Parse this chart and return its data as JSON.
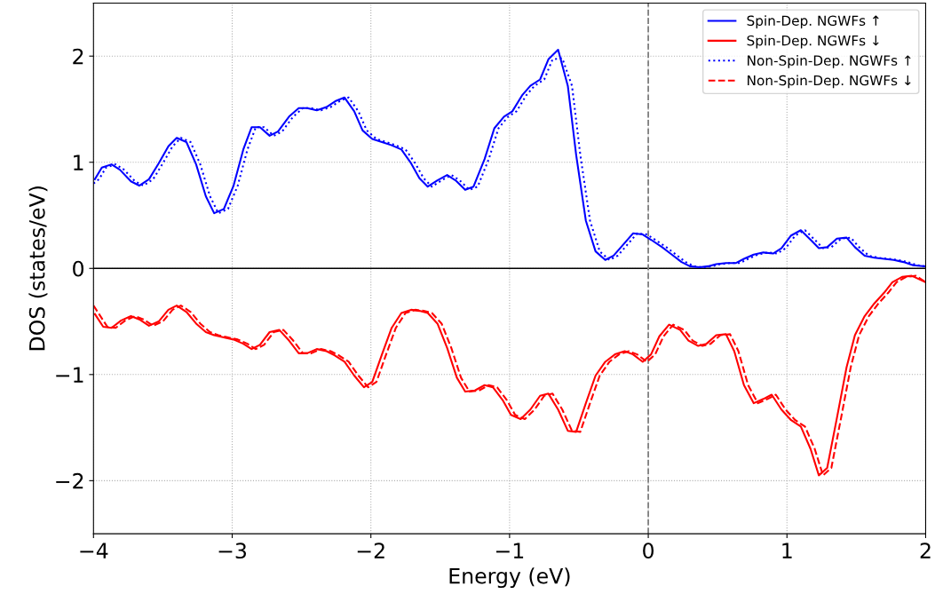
{
  "chart_data": {
    "type": "line",
    "xlabel": "Energy (eV)",
    "ylabel": "DOS (states/eV)",
    "xlim": [
      -4,
      2
    ],
    "xticks": [
      {
        "value": -4,
        "label": "−4"
      },
      {
        "value": -3,
        "label": "−3"
      },
      {
        "value": -2,
        "label": "−2"
      },
      {
        "value": -1,
        "label": "−1"
      },
      0,
      1,
      2
    ],
    "ylim": [
      -2.5,
      2.5
    ],
    "yticks": [
      {
        "value": -2,
        "label": "−2"
      },
      {
        "value": -1,
        "label": "−1"
      },
      0,
      1,
      2
    ],
    "grid": true,
    "legend": "top right",
    "ref_lines": [
      {
        "axis": "y",
        "value": 0,
        "color": "#000000",
        "line_style": "solid"
      },
      {
        "axis": "x",
        "value": 0,
        "color": "#808080",
        "line_style": "dashed"
      }
    ],
    "series": [
      {
        "name": "Spin-Dep. NGWFs ↑",
        "color": "#0000ff",
        "line_style": "solid",
        "x": [
          -3.99,
          -3.94,
          -3.87,
          -3.81,
          -3.73,
          -3.67,
          -3.6,
          -3.53,
          -3.46,
          -3.4,
          -3.33,
          -3.26,
          -3.19,
          -3.13,
          -3.06,
          -2.99,
          -2.92,
          -2.86,
          -2.8,
          -2.73,
          -2.67,
          -2.59,
          -2.52,
          -2.46,
          -2.39,
          -2.32,
          -2.25,
          -2.19,
          -2.12,
          -2.06,
          -1.99,
          -1.92,
          -1.85,
          -1.78,
          -1.71,
          -1.65,
          -1.59,
          -1.52,
          -1.45,
          -1.39,
          -1.32,
          -1.26,
          -1.18,
          -1.11,
          -1.04,
          -0.98,
          -0.91,
          -0.85,
          -0.78,
          -0.72,
          -0.65,
          -0.58,
          -0.52,
          -0.45,
          -0.38,
          -0.31,
          -0.25,
          -0.17,
          -0.11,
          -0.04,
          0.02,
          0.1,
          0.17,
          0.24,
          0.3,
          0.37,
          0.43,
          0.49,
          0.56,
          0.63,
          0.69,
          0.76,
          0.83,
          0.9,
          0.96,
          1.03,
          1.1,
          1.17,
          1.23,
          1.29,
          1.36,
          1.43,
          1.49,
          1.56,
          1.63,
          1.7,
          1.77,
          1.84,
          1.91,
          1.99
        ],
        "values": [
          0.84,
          0.95,
          0.98,
          0.93,
          0.82,
          0.78,
          0.84,
          0.99,
          1.15,
          1.23,
          1.19,
          0.98,
          0.68,
          0.52,
          0.56,
          0.78,
          1.12,
          1.33,
          1.33,
          1.25,
          1.29,
          1.43,
          1.51,
          1.51,
          1.49,
          1.52,
          1.58,
          1.61,
          1.48,
          1.3,
          1.22,
          1.19,
          1.16,
          1.12,
          0.99,
          0.85,
          0.77,
          0.83,
          0.88,
          0.83,
          0.74,
          0.77,
          1.03,
          1.32,
          1.43,
          1.48,
          1.63,
          1.72,
          1.78,
          1.97,
          2.06,
          1.72,
          1.07,
          0.45,
          0.16,
          0.08,
          0.12,
          0.24,
          0.33,
          0.32,
          0.27,
          0.2,
          0.13,
          0.06,
          0.02,
          0.01,
          0.02,
          0.04,
          0.05,
          0.05,
          0.09,
          0.13,
          0.15,
          0.14,
          0.19,
          0.31,
          0.36,
          0.27,
          0.19,
          0.2,
          0.28,
          0.29,
          0.2,
          0.12,
          0.1,
          0.09,
          0.08,
          0.06,
          0.03,
          0.02
        ]
      },
      {
        "name": "Spin-Dep. NGWFs ↓",
        "color": "#ff0000",
        "line_style": "solid",
        "x": [
          -3.99,
          -3.93,
          -3.87,
          -3.8,
          -3.73,
          -3.67,
          -3.6,
          -3.53,
          -3.46,
          -3.4,
          -3.33,
          -3.26,
          -3.19,
          -3.13,
          -3.06,
          -2.99,
          -2.92,
          -2.86,
          -2.8,
          -2.73,
          -2.66,
          -2.59,
          -2.52,
          -2.46,
          -2.39,
          -2.32,
          -2.26,
          -2.19,
          -2.12,
          -2.05,
          -1.99,
          -1.92,
          -1.85,
          -1.78,
          -1.71,
          -1.65,
          -1.59,
          -1.52,
          -1.45,
          -1.38,
          -1.32,
          -1.25,
          -1.18,
          -1.12,
          -1.05,
          -0.99,
          -0.92,
          -0.85,
          -0.78,
          -0.72,
          -0.65,
          -0.58,
          -0.52,
          -0.45,
          -0.38,
          -0.31,
          -0.24,
          -0.17,
          -0.11,
          -0.04,
          0.02,
          0.08,
          0.15,
          0.23,
          0.29,
          0.36,
          0.42,
          0.49,
          0.56,
          0.62,
          0.69,
          0.76,
          0.83,
          0.89,
          0.96,
          1.03,
          1.1,
          1.17,
          1.23,
          1.29,
          1.36,
          1.43,
          1.49,
          1.56,
          1.63,
          1.7,
          1.76,
          1.83,
          1.9,
          2.0
        ],
        "values": [
          -0.43,
          -0.55,
          -0.56,
          -0.49,
          -0.45,
          -0.48,
          -0.54,
          -0.5,
          -0.39,
          -0.35,
          -0.41,
          -0.52,
          -0.6,
          -0.63,
          -0.65,
          -0.67,
          -0.71,
          -0.76,
          -0.72,
          -0.6,
          -0.58,
          -0.68,
          -0.8,
          -0.8,
          -0.76,
          -0.78,
          -0.82,
          -0.88,
          -1.01,
          -1.12,
          -1.07,
          -0.81,
          -0.56,
          -0.42,
          -0.39,
          -0.4,
          -0.42,
          -0.52,
          -0.75,
          -1.03,
          -1.16,
          -1.15,
          -1.1,
          -1.12,
          -1.24,
          -1.38,
          -1.42,
          -1.33,
          -1.2,
          -1.18,
          -1.33,
          -1.53,
          -1.54,
          -1.27,
          -1.01,
          -0.88,
          -0.81,
          -0.78,
          -0.81,
          -0.88,
          -0.81,
          -0.64,
          -0.53,
          -0.58,
          -0.68,
          -0.73,
          -0.71,
          -0.63,
          -0.62,
          -0.78,
          -1.1,
          -1.27,
          -1.23,
          -1.19,
          -1.33,
          -1.43,
          -1.49,
          -1.7,
          -1.95,
          -1.88,
          -1.41,
          -0.93,
          -0.63,
          -0.45,
          -0.33,
          -0.23,
          -0.13,
          -0.08,
          -0.07,
          -0.13
        ]
      },
      {
        "name": "Non-Spin-Dep. NGWFs ↑",
        "color": "#0000ff",
        "line_style": "dotted",
        "x": [
          -4.0,
          -3.96,
          -3.91,
          -3.84,
          -3.78,
          -3.7,
          -3.64,
          -3.57,
          -3.5,
          -3.43,
          -3.37,
          -3.3,
          -3.23,
          -3.16,
          -3.1,
          -3.03,
          -2.96,
          -2.89,
          -2.83,
          -2.77,
          -2.7,
          -2.64,
          -2.56,
          -2.49,
          -2.43,
          -2.36,
          -2.29,
          -2.22,
          -2.16,
          -2.09,
          -2.03,
          -1.96,
          -1.89,
          -1.82,
          -1.75,
          -1.68,
          -1.62,
          -1.56,
          -1.49,
          -1.42,
          -1.36,
          -1.29,
          -1.23,
          -1.15,
          -1.08,
          -1.01,
          -0.95,
          -0.88,
          -0.82,
          -0.75,
          -0.69,
          -0.62,
          -0.55,
          -0.49,
          -0.42,
          -0.35,
          -0.28,
          -0.22,
          -0.14,
          -0.08,
          -0.01,
          0.05,
          0.13,
          0.2,
          0.27,
          0.33,
          0.4,
          0.46,
          0.52,
          0.59,
          0.66,
          0.72,
          0.79,
          0.86,
          0.93,
          0.99,
          1.06,
          1.13,
          1.2,
          1.26,
          1.32,
          1.39,
          1.46,
          1.52,
          1.59,
          1.66,
          1.73,
          1.8,
          1.87,
          1.94,
          2.0
        ],
        "values": [
          0.8,
          0.84,
          0.95,
          0.98,
          0.93,
          0.82,
          0.78,
          0.84,
          0.99,
          1.15,
          1.23,
          1.19,
          0.98,
          0.68,
          0.52,
          0.56,
          0.78,
          1.12,
          1.33,
          1.33,
          1.25,
          1.29,
          1.43,
          1.51,
          1.51,
          1.49,
          1.52,
          1.58,
          1.61,
          1.48,
          1.3,
          1.22,
          1.19,
          1.16,
          1.12,
          0.99,
          0.85,
          0.77,
          0.83,
          0.88,
          0.83,
          0.74,
          0.77,
          1.03,
          1.32,
          1.43,
          1.48,
          1.63,
          1.72,
          1.78,
          1.97,
          1.98,
          1.72,
          1.07,
          0.45,
          0.16,
          0.08,
          0.12,
          0.24,
          0.33,
          0.32,
          0.27,
          0.2,
          0.13,
          0.06,
          0.02,
          0.01,
          0.02,
          0.04,
          0.05,
          0.05,
          0.09,
          0.13,
          0.15,
          0.14,
          0.19,
          0.31,
          0.36,
          0.27,
          0.19,
          0.2,
          0.28,
          0.29,
          0.2,
          0.12,
          0.1,
          0.09,
          0.08,
          0.06,
          0.03,
          0.02
        ]
      },
      {
        "name": "Non-Spin-Dep. NGWFs ↓",
        "color": "#ff0000",
        "line_style": "dashed",
        "x": [
          -4.0,
          -3.9,
          -3.84,
          -3.77,
          -3.7,
          -3.64,
          -3.57,
          -3.5,
          -3.43,
          -3.37,
          -3.3,
          -3.23,
          -3.16,
          -3.1,
          -3.03,
          -2.96,
          -2.89,
          -2.83,
          -2.77,
          -2.7,
          -2.63,
          -2.56,
          -2.49,
          -2.43,
          -2.36,
          -2.29,
          -2.23,
          -2.16,
          -2.09,
          -2.02,
          -1.96,
          -1.89,
          -1.82,
          -1.75,
          -1.68,
          -1.62,
          -1.56,
          -1.49,
          -1.42,
          -1.35,
          -1.29,
          -1.22,
          -1.15,
          -1.09,
          -1.02,
          -0.96,
          -0.89,
          -0.82,
          -0.75,
          -0.69,
          -0.62,
          -0.55,
          -0.49,
          -0.42,
          -0.35,
          -0.28,
          -0.21,
          -0.14,
          -0.08,
          -0.01,
          0.05,
          0.11,
          0.18,
          0.26,
          0.32,
          0.39,
          0.45,
          0.52,
          0.59,
          0.65,
          0.72,
          0.79,
          0.86,
          0.92,
          0.99,
          1.06,
          1.13,
          1.2,
          1.26,
          1.32,
          1.39,
          1.46,
          1.52,
          1.59,
          1.66,
          1.73,
          1.79,
          1.86,
          1.93,
          2.0
        ],
        "values": [
          -0.35,
          -0.55,
          -0.56,
          -0.49,
          -0.45,
          -0.48,
          -0.54,
          -0.5,
          -0.39,
          -0.35,
          -0.41,
          -0.52,
          -0.6,
          -0.63,
          -0.65,
          -0.67,
          -0.71,
          -0.76,
          -0.72,
          -0.6,
          -0.58,
          -0.68,
          -0.8,
          -0.8,
          -0.76,
          -0.78,
          -0.82,
          -0.88,
          -1.01,
          -1.12,
          -1.07,
          -0.81,
          -0.56,
          -0.42,
          -0.39,
          -0.4,
          -0.42,
          -0.52,
          -0.75,
          -1.03,
          -1.16,
          -1.15,
          -1.1,
          -1.12,
          -1.24,
          -1.38,
          -1.42,
          -1.33,
          -1.2,
          -1.18,
          -1.33,
          -1.53,
          -1.54,
          -1.27,
          -1.01,
          -0.88,
          -0.81,
          -0.78,
          -0.81,
          -0.88,
          -0.81,
          -0.64,
          -0.53,
          -0.58,
          -0.68,
          -0.73,
          -0.71,
          -0.63,
          -0.62,
          -0.78,
          -1.1,
          -1.27,
          -1.23,
          -1.19,
          -1.33,
          -1.43,
          -1.49,
          -1.7,
          -1.95,
          -1.88,
          -1.41,
          -0.93,
          -0.63,
          -0.45,
          -0.33,
          -0.23,
          -0.13,
          -0.08,
          -0.07,
          -0.13
        ]
      }
    ]
  }
}
